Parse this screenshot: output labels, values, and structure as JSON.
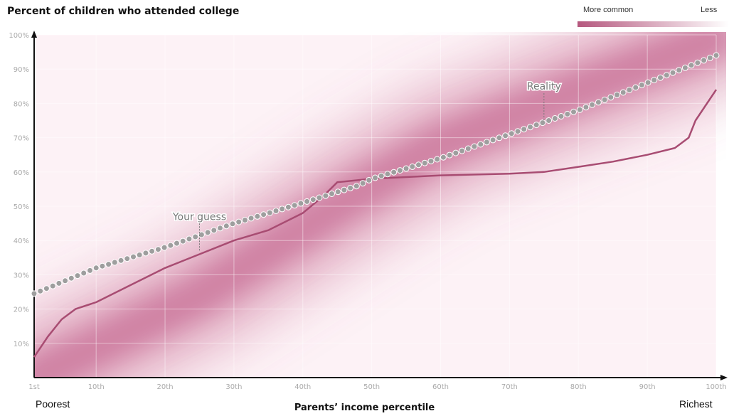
{
  "chart_data": {
    "type": "line",
    "title": "Percent of children who attended college",
    "xlabel": "Parents’ income percentile",
    "ylabel": "",
    "x_extremes": {
      "left": "Poorest",
      "right": "Richest"
    },
    "xlim": [
      1,
      100
    ],
    "ylim": [
      0,
      100
    ],
    "x_ticks": [
      {
        "v": 1,
        "label": "1st"
      },
      {
        "v": 10,
        "label": "10th"
      },
      {
        "v": 20,
        "label": "20th"
      },
      {
        "v": 30,
        "label": "30th"
      },
      {
        "v": 40,
        "label": "40th"
      },
      {
        "v": 50,
        "label": "50th"
      },
      {
        "v": 60,
        "label": "60th"
      },
      {
        "v": 70,
        "label": "70th"
      },
      {
        "v": 80,
        "label": "80th"
      },
      {
        "v": 90,
        "label": "90th"
      },
      {
        "v": 100,
        "label": "100th"
      }
    ],
    "y_ticks": [
      {
        "v": 10,
        "label": "10%"
      },
      {
        "v": 20,
        "label": "20%"
      },
      {
        "v": 30,
        "label": "30%"
      },
      {
        "v": 40,
        "label": "40%"
      },
      {
        "v": 50,
        "label": "50%"
      },
      {
        "v": 60,
        "label": "60%"
      },
      {
        "v": 70,
        "label": "70%"
      },
      {
        "v": 80,
        "label": "80%"
      },
      {
        "v": 90,
        "label": "90%"
      },
      {
        "v": 100,
        "label": "100%"
      }
    ],
    "legend": {
      "more_label": "More common",
      "less_label": "Less",
      "color_more": "#b5587e",
      "color_less": "#ffffff"
    },
    "density_band": {
      "color": "#c05a86",
      "center_points": [
        [
          1,
          0
        ],
        [
          25,
          24
        ],
        [
          48,
          54
        ],
        [
          60,
          68
        ],
        [
          80,
          84
        ],
        [
          100,
          99
        ]
      ]
    },
    "series": [
      {
        "name": "Reality",
        "style": "dotted",
        "color": "#9e9e9e",
        "points": [
          [
            1,
            24.5
          ],
          [
            10,
            32
          ],
          [
            20,
            38
          ],
          [
            30,
            45
          ],
          [
            40,
            51
          ],
          [
            48,
            56
          ],
          [
            50,
            58
          ],
          [
            60,
            64
          ],
          [
            70,
            71
          ],
          [
            80,
            78
          ],
          [
            90,
            86
          ],
          [
            100,
            94
          ]
        ]
      },
      {
        "name": "Your guess",
        "style": "solid",
        "color": "#a84c72",
        "points": [
          [
            1,
            6
          ],
          [
            3,
            12
          ],
          [
            5,
            17
          ],
          [
            7,
            20
          ],
          [
            10,
            22
          ],
          [
            15,
            27
          ],
          [
            20,
            32
          ],
          [
            25,
            36
          ],
          [
            30,
            40
          ],
          [
            35,
            43
          ],
          [
            40,
            48
          ],
          [
            43,
            53
          ],
          [
            45,
            57
          ],
          [
            50,
            58
          ],
          [
            60,
            59
          ],
          [
            70,
            59.5
          ],
          [
            75,
            60
          ],
          [
            80,
            61.5
          ],
          [
            85,
            63
          ],
          [
            90,
            65
          ],
          [
            94,
            67
          ],
          [
            96,
            70
          ],
          [
            97,
            75
          ],
          [
            98,
            78
          ],
          [
            100,
            84
          ]
        ]
      }
    ],
    "annotations": [
      {
        "text": "Your guess",
        "x": 25,
        "y": 46,
        "line_to_y": 37
      },
      {
        "text": "Reality",
        "x": 75,
        "y": 84,
        "line_to_y": 75
      }
    ],
    "grid": true
  }
}
